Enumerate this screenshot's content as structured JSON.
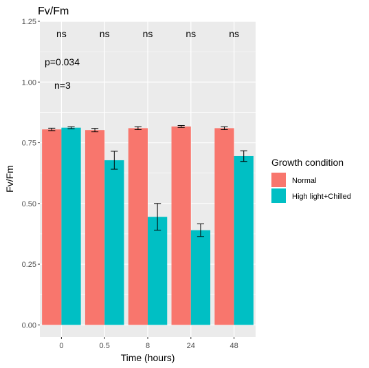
{
  "chart_data": {
    "type": "bar",
    "title": "Fv/Fm",
    "xlabel": "Time (hours)",
    "ylabel": "Fv/Fm",
    "categories": [
      "0",
      "0.5",
      "8",
      "24",
      "48"
    ],
    "ylim": [
      -0.05,
      1.25
    ],
    "yticks": [
      "0.00",
      "0.25",
      "0.50",
      "0.75",
      "1.00",
      "1.25"
    ],
    "ytick_values": [
      0,
      0.25,
      0.5,
      0.75,
      1.0,
      1.25
    ],
    "grid": true,
    "legend": {
      "title": "Growth condition",
      "position": "right"
    },
    "series": [
      {
        "name": "Normal",
        "color": "#F8766D",
        "values": [
          0.805,
          0.802,
          0.81,
          0.817,
          0.81
        ],
        "errors": [
          0.005,
          0.007,
          0.006,
          0.004,
          0.006
        ]
      },
      {
        "name": "High light+Chilled",
        "color": "#00BFC4",
        "values": [
          0.812,
          0.678,
          0.445,
          0.39,
          0.695
        ],
        "errors": [
          0.004,
          0.037,
          0.055,
          0.026,
          0.022
        ]
      }
    ],
    "annotations": {
      "significance": [
        "ns",
        "ns",
        "ns",
        "ns",
        "ns"
      ],
      "p_value": "p=0.034",
      "n": "n=3"
    }
  },
  "colors": {
    "panel_bg": "#EBEBEB",
    "grid": "#FFFFFF"
  }
}
